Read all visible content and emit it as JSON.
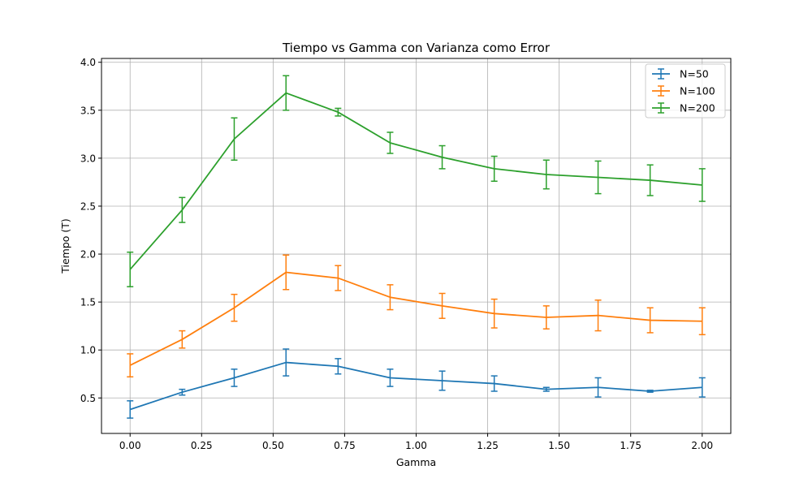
{
  "chart_data": {
    "type": "line",
    "title": "Tiempo vs Gamma con Varianza como Error",
    "xlabel": "Gamma",
    "ylabel": "Tiempo (T)",
    "xlim": [
      -0.1,
      2.1
    ],
    "ylim": [
      0.13,
      4.04
    ],
    "xticks": [
      0.0,
      0.25,
      0.5,
      0.75,
      1.0,
      1.25,
      1.5,
      1.75,
      2.0
    ],
    "xtick_labels": [
      "0.00",
      "0.25",
      "0.50",
      "0.75",
      "1.00",
      "1.25",
      "1.50",
      "1.75",
      "2.00"
    ],
    "yticks": [
      0.5,
      1.0,
      1.5,
      2.0,
      2.5,
      3.0,
      3.5,
      4.0
    ],
    "ytick_labels": [
      "0.5",
      "1.0",
      "1.5",
      "2.0",
      "2.5",
      "3.0",
      "3.5",
      "4.0"
    ],
    "grid": true,
    "legend_position": "top-right",
    "x": [
      0.0,
      0.182,
      0.364,
      0.545,
      0.727,
      0.909,
      1.091,
      1.273,
      1.455,
      1.636,
      1.818,
      2.0
    ],
    "series": [
      {
        "name": "N=50",
        "color": "#1f77b4",
        "values": [
          0.38,
          0.56,
          0.71,
          0.87,
          0.83,
          0.71,
          0.68,
          0.65,
          0.59,
          0.61,
          0.57,
          0.61
        ],
        "errors": [
          0.09,
          0.03,
          0.09,
          0.14,
          0.08,
          0.09,
          0.1,
          0.08,
          0.02,
          0.1,
          0.01,
          0.1
        ]
      },
      {
        "name": "N=100",
        "color": "#ff7f0e",
        "values": [
          0.84,
          1.11,
          1.44,
          1.81,
          1.75,
          1.55,
          1.46,
          1.38,
          1.34,
          1.36,
          1.31,
          1.3
        ],
        "errors": [
          0.12,
          0.09,
          0.14,
          0.18,
          0.13,
          0.13,
          0.13,
          0.15,
          0.12,
          0.16,
          0.13,
          0.14
        ]
      },
      {
        "name": "N=200",
        "color": "#2ca02c",
        "values": [
          1.84,
          2.46,
          3.2,
          3.68,
          3.48,
          3.16,
          3.01,
          2.89,
          2.83,
          2.8,
          2.77,
          2.72
        ],
        "errors": [
          0.18,
          0.13,
          0.22,
          0.18,
          0.04,
          0.11,
          0.12,
          0.13,
          0.15,
          0.17,
          0.16,
          0.17
        ]
      }
    ]
  }
}
